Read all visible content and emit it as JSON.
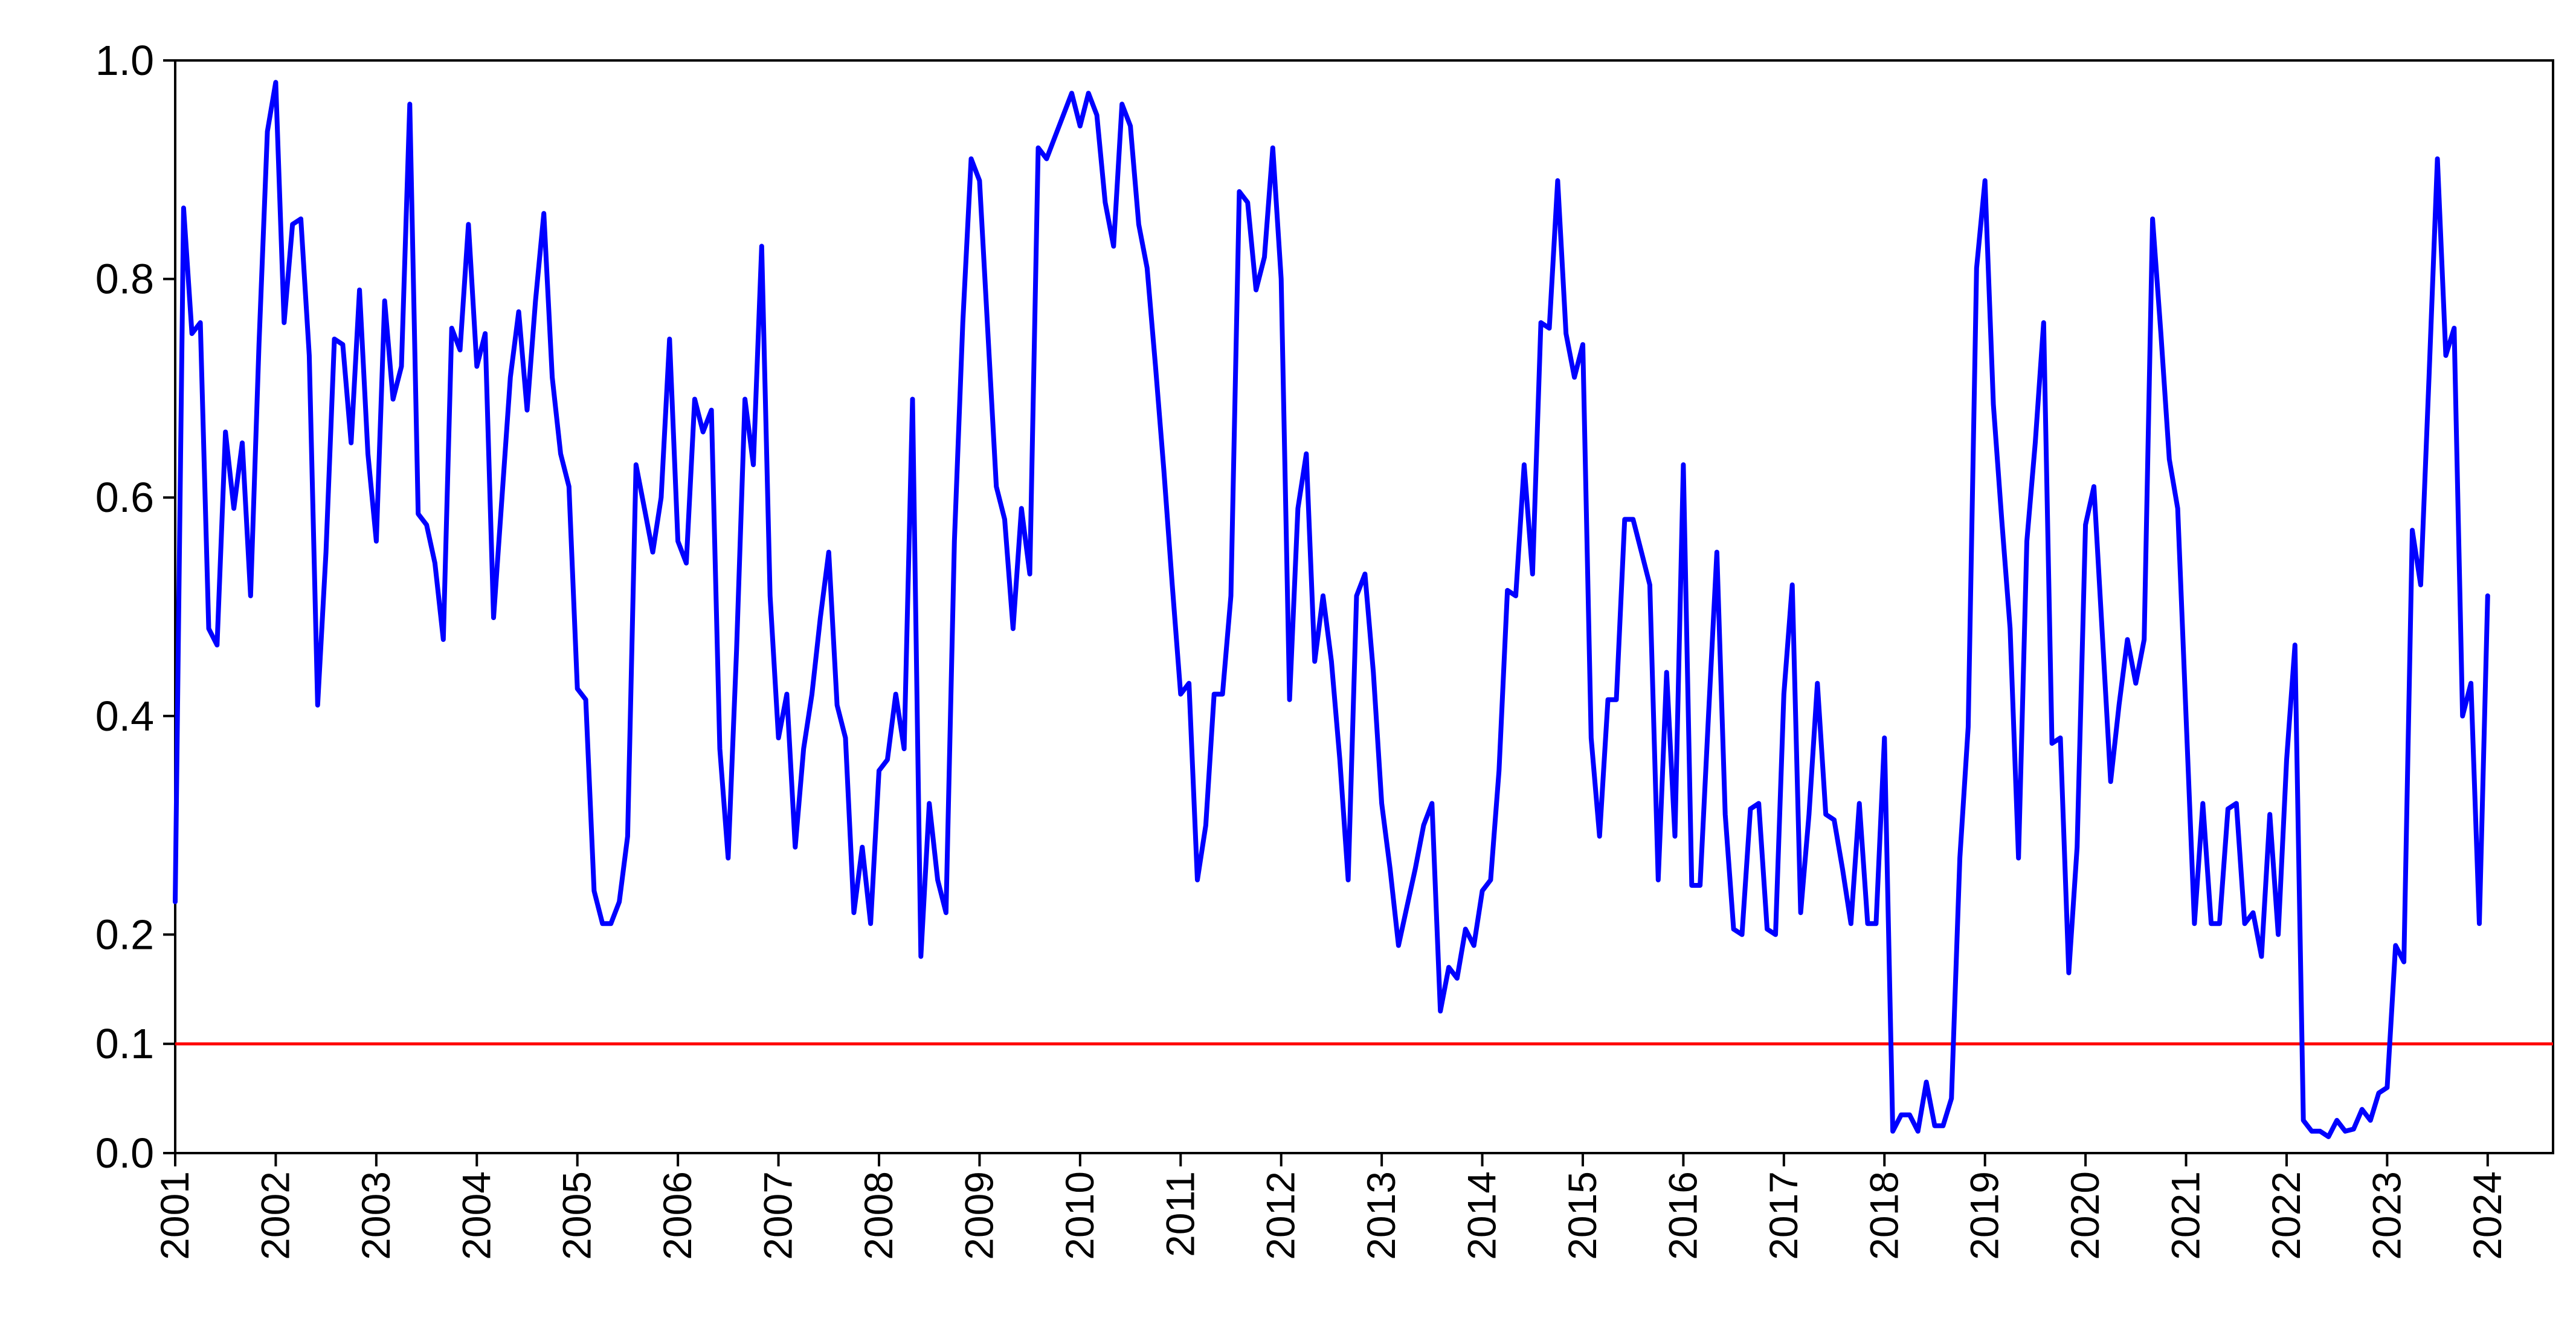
{
  "chart_data": {
    "type": "line",
    "title": "",
    "xlabel": "",
    "ylabel": "",
    "ylim": [
      0.0,
      1.0
    ],
    "xlim": [
      2001.0,
      2024.65
    ],
    "grid": false,
    "legend": "none",
    "y_ticks": [
      {
        "value": 0.0,
        "label": "0.0"
      },
      {
        "value": 0.1,
        "label": "0.1"
      },
      {
        "value": 0.2,
        "label": "0.2"
      },
      {
        "value": 0.4,
        "label": "0.4"
      },
      {
        "value": 0.6,
        "label": "0.6"
      },
      {
        "value": 0.8,
        "label": "0.8"
      },
      {
        "value": 1.0,
        "label": "1.0"
      }
    ],
    "x_ticks": [
      "2001",
      "2002",
      "2003",
      "2004",
      "2005",
      "2006",
      "2007",
      "2008",
      "2009",
      "2010",
      "2011",
      "2012",
      "2013",
      "2014",
      "2015",
      "2016",
      "2017",
      "2018",
      "2019",
      "2020",
      "2021",
      "2022",
      "2023",
      "2024"
    ],
    "reference_line": {
      "y": 0.1,
      "color": "#ff0000"
    },
    "series": [
      {
        "color": "#0000ff",
        "x_start": 2001.0,
        "step": 0.0833333,
        "values": [
          0.23,
          0.865,
          0.75,
          0.76,
          0.48,
          0.465,
          0.66,
          0.59,
          0.65,
          0.51,
          0.74,
          0.935,
          0.98,
          0.76,
          0.85,
          0.855,
          0.73,
          0.41,
          0.55,
          0.745,
          0.74,
          0.65,
          0.79,
          0.64,
          0.56,
          0.78,
          0.69,
          0.72,
          0.96,
          0.585,
          0.575,
          0.54,
          0.47,
          0.755,
          0.735,
          0.85,
          0.72,
          0.75,
          0.49,
          0.6,
          0.71,
          0.77,
          0.68,
          0.78,
          0.86,
          0.71,
          0.64,
          0.61,
          0.425,
          0.415,
          0.24,
          0.21,
          0.21,
          0.23,
          0.29,
          0.63,
          0.59,
          0.55,
          0.6,
          0.745,
          0.56,
          0.54,
          0.69,
          0.66,
          0.68,
          0.37,
          0.27,
          0.46,
          0.69,
          0.63,
          0.83,
          0.51,
          0.38,
          0.42,
          0.28,
          0.37,
          0.42,
          0.49,
          0.55,
          0.41,
          0.38,
          0.22,
          0.28,
          0.21,
          0.35,
          0.36,
          0.42,
          0.37,
          0.69,
          0.18,
          0.32,
          0.25,
          0.22,
          0.56,
          0.76,
          0.91,
          0.89,
          0.75,
          0.61,
          0.58,
          0.48,
          0.59,
          0.53,
          0.92,
          0.91,
          0.93,
          0.95,
          0.97,
          0.94,
          0.97,
          0.95,
          0.87,
          0.83,
          0.96,
          0.94,
          0.85,
          0.81,
          0.72,
          0.625,
          0.52,
          0.42,
          0.43,
          0.25,
          0.3,
          0.42,
          0.42,
          0.51,
          0.88,
          0.87,
          0.79,
          0.82,
          0.92,
          0.8,
          0.415,
          0.59,
          0.64,
          0.45,
          0.51,
          0.45,
          0.36,
          0.25,
          0.51,
          0.53,
          0.44,
          0.32,
          0.26,
          0.19,
          0.225,
          0.26,
          0.3,
          0.32,
          0.13,
          0.17,
          0.16,
          0.205,
          0.19,
          0.24,
          0.25,
          0.35,
          0.515,
          0.51,
          0.63,
          0.53,
          0.76,
          0.755,
          0.89,
          0.75,
          0.71,
          0.74,
          0.38,
          0.29,
          0.415,
          0.415,
          0.58,
          0.58,
          0.55,
          0.52,
          0.25,
          0.44,
          0.29,
          0.63,
          0.245,
          0.245,
          0.4,
          0.55,
          0.31,
          0.205,
          0.2,
          0.315,
          0.32,
          0.205,
          0.2,
          0.42,
          0.52,
          0.22,
          0.31,
          0.43,
          0.31,
          0.305,
          0.26,
          0.21,
          0.32,
          0.21,
          0.21,
          0.38,
          0.02,
          0.035,
          0.035,
          0.02,
          0.065,
          0.025,
          0.025,
          0.05,
          0.27,
          0.39,
          0.81,
          0.89,
          0.685,
          0.58,
          0.48,
          0.27,
          0.56,
          0.65,
          0.76,
          0.375,
          0.38,
          0.165,
          0.28,
          0.575,
          0.61,
          0.475,
          0.34,
          0.41,
          0.47,
          0.43,
          0.47,
          0.855,
          0.75,
          0.635,
          0.59,
          0.4,
          0.21,
          0.32,
          0.21,
          0.21,
          0.315,
          0.32,
          0.21,
          0.22,
          0.18,
          0.31,
          0.2,
          0.36,
          0.465,
          0.03,
          0.02,
          0.02,
          0.015,
          0.03,
          0.02,
          0.022,
          0.04,
          0.03,
          0.055,
          0.06,
          0.19,
          0.175,
          0.57,
          0.52,
          0.71,
          0.91,
          0.73,
          0.755,
          0.4,
          0.43,
          0.21,
          0.51
        ]
      }
    ]
  }
}
